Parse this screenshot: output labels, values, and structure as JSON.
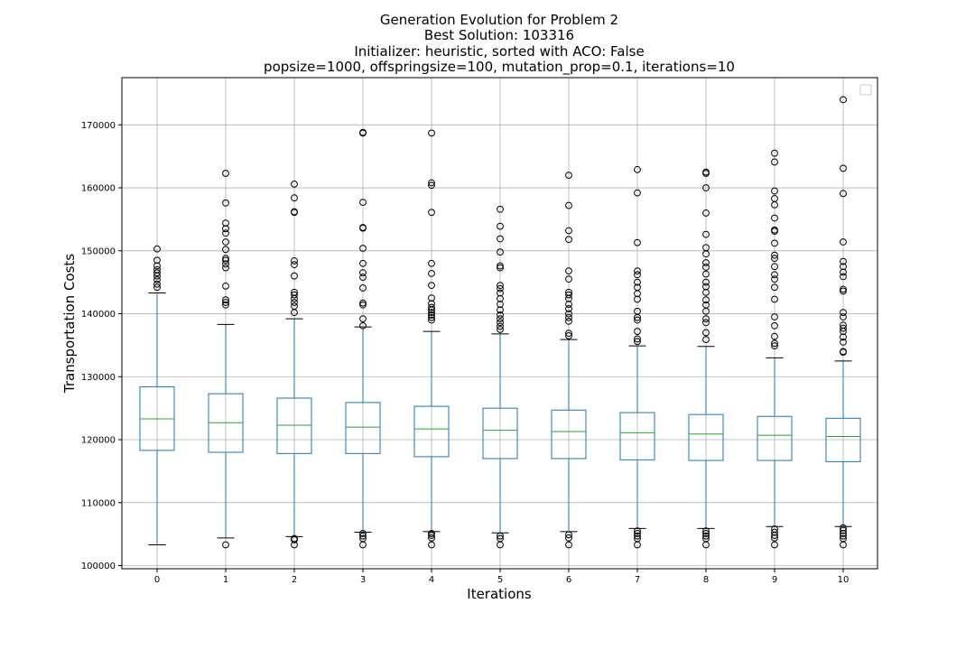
{
  "chart_data": {
    "type": "box",
    "title_lines": [
      "Generation Evolution for Problem 2",
      "Best Solution: 103316",
      "Initializer: heuristic, sorted with ACO: False",
      "popsize=1000, offspringsize=100, mutation_prop=0.1, iterations=10"
    ],
    "xlabel": "Iterations",
    "ylabel": "Transportation Costs",
    "categories": [
      "0",
      "1",
      "2",
      "3",
      "4",
      "5",
      "6",
      "7",
      "8",
      "9",
      "10"
    ],
    "ylim": [
      99500,
      177500
    ],
    "yticks": [
      100000,
      110000,
      120000,
      130000,
      140000,
      150000,
      160000,
      170000
    ],
    "grid": true,
    "legend": "top-right (empty)",
    "colors": {
      "box": "#1f77b4",
      "median": "#2ca02c",
      "whisker_cap": "#000000",
      "outlier": "#000000",
      "grid": "#b0b0b0"
    },
    "boxes": [
      {
        "category": "0",
        "whisker_low": 103300,
        "q1": 118300,
        "median": 123300,
        "q3": 128400,
        "whisker_high": 143300,
        "outliers": [
          144200,
          144700,
          145400,
          146000,
          146500,
          147000,
          147600,
          148500,
          150300
        ]
      },
      {
        "category": "1",
        "whisker_low": 104400,
        "q1": 118000,
        "median": 122700,
        "q3": 127300,
        "whisker_high": 138300,
        "outliers": [
          103300,
          141400,
          141800,
          142200,
          144400,
          147300,
          147900,
          148500,
          148800,
          150200,
          151400,
          152800,
          153500,
          154400,
          157600,
          162300
        ]
      },
      {
        "category": "2",
        "whisker_low": 104600,
        "q1": 117800,
        "median": 122300,
        "q3": 126600,
        "whisker_high": 139200,
        "outliers": [
          103300,
          104100,
          104300,
          140200,
          141200,
          141800,
          142400,
          143000,
          143400,
          146000,
          147800,
          148400,
          156100,
          156200,
          158400,
          160600
        ]
      },
      {
        "category": "3",
        "whisker_low": 105300,
        "q1": 117800,
        "median": 122000,
        "q3": 125900,
        "whisker_high": 137900,
        "outliers": [
          103300,
          104300,
          104700,
          105100,
          138100,
          139200,
          141400,
          141700,
          144100,
          145800,
          146500,
          148000,
          150400,
          153600,
          153700,
          157700,
          168700,
          168800
        ]
      },
      {
        "category": "4",
        "whisker_low": 105400,
        "q1": 117300,
        "median": 121700,
        "q3": 125300,
        "whisker_high": 137200,
        "outliers": [
          103300,
          104400,
          104800,
          105100,
          139000,
          139400,
          139800,
          140200,
          140600,
          141000,
          141600,
          142500,
          144500,
          146400,
          148000,
          156100,
          160400,
          160800,
          168700
        ]
      },
      {
        "category": "5",
        "whisker_low": 105200,
        "q1": 117000,
        "median": 121500,
        "q3": 125000,
        "whisker_high": 136800,
        "outliers": [
          103300,
          104300,
          104700,
          137500,
          138000,
          138600,
          139200,
          139800,
          140600,
          141500,
          142400,
          143300,
          144000,
          144500,
          147300,
          147600,
          149800,
          151900,
          153900,
          156600
        ]
      },
      {
        "category": "6",
        "whisker_low": 105400,
        "q1": 117000,
        "median": 121300,
        "q3": 124700,
        "whisker_high": 135900,
        "outliers": [
          103300,
          104400,
          104900,
          136500,
          136900,
          138800,
          139400,
          140000,
          140800,
          141500,
          142400,
          143000,
          143400,
          145500,
          146800,
          151800,
          153200,
          157200,
          162000
        ]
      },
      {
        "category": "7",
        "whisker_low": 105900,
        "q1": 116800,
        "median": 121100,
        "q3": 124300,
        "whisker_high": 134900,
        "outliers": [
          103300,
          104300,
          104700,
          105100,
          105500,
          135600,
          136000,
          137200,
          139000,
          139400,
          140400,
          142300,
          143200,
          144200,
          145000,
          146200,
          146800,
          151300,
          159200,
          162900
        ]
      },
      {
        "category": "8",
        "whisker_low": 105900,
        "q1": 116700,
        "median": 120900,
        "q3": 124000,
        "whisker_high": 134800,
        "outliers": [
          103300,
          104300,
          104700,
          105100,
          105500,
          135900,
          137000,
          138600,
          139200,
          140400,
          141400,
          142200,
          143400,
          144300,
          145000,
          146300,
          147400,
          148100,
          149500,
          150500,
          152600,
          156000,
          160000,
          162300,
          162500
        ]
      },
      {
        "category": "9",
        "whisker_low": 106200,
        "q1": 116700,
        "median": 120700,
        "q3": 123700,
        "whisker_high": 133000,
        "outliers": [
          103300,
          104400,
          104800,
          105300,
          105800,
          134900,
          135300,
          136400,
          138100,
          139500,
          142300,
          144200,
          145500,
          146200,
          147500,
          148800,
          149300,
          151200,
          153100,
          153300,
          155200,
          157300,
          158300,
          159500,
          164100,
          165500
        ]
      },
      {
        "category": "10",
        "whisker_low": 106200,
        "q1": 116500,
        "median": 120500,
        "q3": 123400,
        "whisker_high": 132500,
        "outliers": [
          103300,
          104300,
          104700,
          105100,
          105600,
          106000,
          133900,
          134000,
          135500,
          136300,
          137200,
          137700,
          138200,
          139500,
          140200,
          143600,
          143900,
          145900,
          146600,
          147500,
          148300,
          151400,
          159100,
          163100,
          174000
        ]
      }
    ]
  }
}
